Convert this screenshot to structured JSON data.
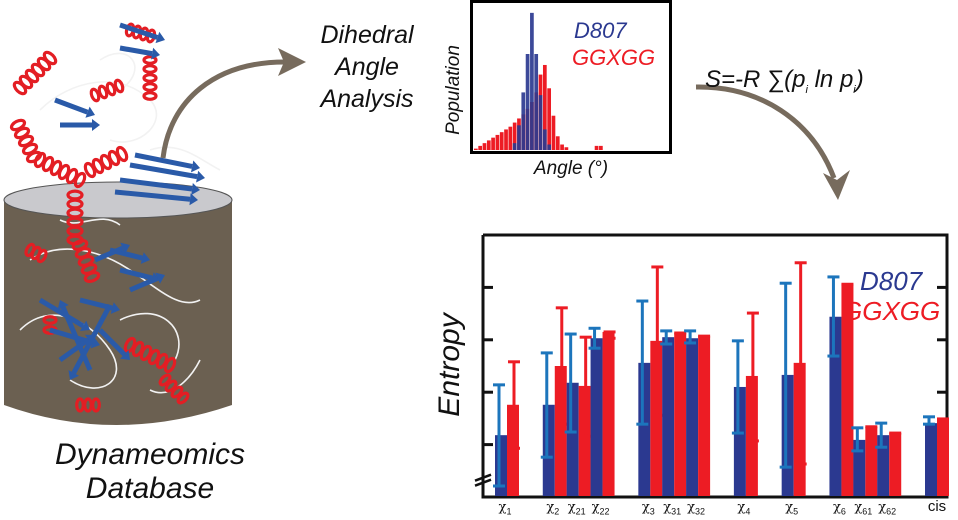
{
  "labels": {
    "database_line1": "Dynameomics",
    "database_line2": "Database",
    "analysis_line1": "Dihedral",
    "analysis_line2": "Angle",
    "analysis_line3": "Analysis",
    "formula_prefix": "S=-R ∑(p",
    "formula_sub1": "i",
    "formula_mid": " ln p",
    "formula_sub2": "i",
    "formula_suffix": ")"
  },
  "colors": {
    "d807": "#2b3990",
    "d807_err": "#1c75bc",
    "ggxgg": "#ed1c24",
    "arrow": "#776b5d",
    "cylinder_body": "#6b6051",
    "cylinder_top": "#c9c9cd",
    "helix": "#e31e24",
    "sheet": "#2a5aa8",
    "coil": "#f2f2f2"
  },
  "chart_data": [
    {
      "type": "bar",
      "title": "",
      "xlabel": "Angle (°)",
      "ylabel": "Population",
      "legend_position": "top-right",
      "series": [
        {
          "name": "D807",
          "bins": [
            9,
            10,
            11,
            12,
            13,
            14,
            15,
            16,
            17
          ],
          "values": [
            0.05,
            0.18,
            0.42,
            0.7,
            1.0,
            0.7,
            0.4,
            0.15,
            0.04
          ]
        },
        {
          "name": "GGXGG",
          "bins": [
            0,
            1,
            2,
            3,
            4,
            5,
            6,
            7,
            8,
            9,
            10,
            11,
            12,
            13,
            14,
            15,
            16,
            17,
            18,
            19,
            20,
            21,
            28,
            29
          ],
          "values": [
            0.01,
            0.03,
            0.05,
            0.07,
            0.09,
            0.11,
            0.13,
            0.15,
            0.17,
            0.2,
            0.23,
            0.26,
            0.3,
            0.35,
            0.42,
            0.55,
            0.62,
            0.45,
            0.25,
            0.1,
            0.04,
            0.02,
            0.03,
            0.03
          ]
        }
      ],
      "xlim": [
        0,
        45
      ],
      "ylim": [
        0,
        1.05
      ],
      "grid": false
    },
    {
      "type": "bar",
      "title": "",
      "xlabel": "",
      "ylabel": "Entropy",
      "legend_position": "top-right",
      "categories": [
        "χ1",
        "χ2",
        "χ21",
        "χ22",
        "χ3",
        "χ31",
        "χ32",
        "χ4",
        "χ5",
        "χ6",
        "χ61",
        "χ62",
        "cis"
      ],
      "category_labels": [
        {
          "base": "χ",
          "sub": "1"
        },
        {
          "base": "χ",
          "sub": "2"
        },
        {
          "base": "χ",
          "sub": "21"
        },
        {
          "base": "χ",
          "sub": "22"
        },
        {
          "base": "χ",
          "sub": "3"
        },
        {
          "base": "χ",
          "sub": "31"
        },
        {
          "base": "χ",
          "sub": "32"
        },
        {
          "base": "χ",
          "sub": "4"
        },
        {
          "base": "χ",
          "sub": "5"
        },
        {
          "base": "χ",
          "sub": "6"
        },
        {
          "base": "χ",
          "sub": "61"
        },
        {
          "base": "χ",
          "sub": "62"
        },
        {
          "base": "cis",
          "sub": ""
        }
      ],
      "series": [
        {
          "name": "D807",
          "values": [
            1.18,
            1.76,
            2.18,
            3.03,
            2.56,
            3.05,
            3.03,
            2.1,
            2.33,
            3.44,
            1.09,
            1.18,
            1.41
          ],
          "err_high": [
            2.14,
            2.75,
            3.11,
            3.22,
            3.74,
            3.17,
            3.17,
            2.98,
            4.08,
            4.2,
            1.32,
            1.41,
            1.53
          ],
          "err_low": [
            0.21,
            0.76,
            1.24,
            2.84,
            1.39,
            2.92,
            2.94,
            1.22,
            0.57,
            2.69,
            0.88,
            0.95,
            1.39
          ]
        },
        {
          "name": "GGXGG",
          "values": [
            1.76,
            2.5,
            2.12,
            3.15,
            2.98,
            3.13,
            3.07,
            2.31,
            2.56,
            4.06,
            1.34,
            1.22,
            1.49
          ],
          "err_high": [
            2.58,
            3.61,
            3.05,
            3.15,
            4.39,
            3.13,
            3.07,
            3.51,
            4.47,
            4.06,
            1.34,
            1.22,
            1.49
          ],
          "err_low": [
            0.93,
            1.39,
            1.16,
            3.03,
            1.56,
            3.13,
            3.07,
            1.07,
            0.63,
            4.06,
            1.34,
            1.22,
            1.49
          ]
        }
      ],
      "slot_positions": [
        0,
        2,
        3,
        4,
        6,
        7,
        8,
        10,
        12,
        14,
        15,
        16,
        18
      ],
      "yticks": [
        1,
        2,
        3,
        4
      ],
      "ytick_labels_visible": false,
      "ylim": [
        0,
        5
      ],
      "axis_break": true,
      "grid": false
    }
  ]
}
